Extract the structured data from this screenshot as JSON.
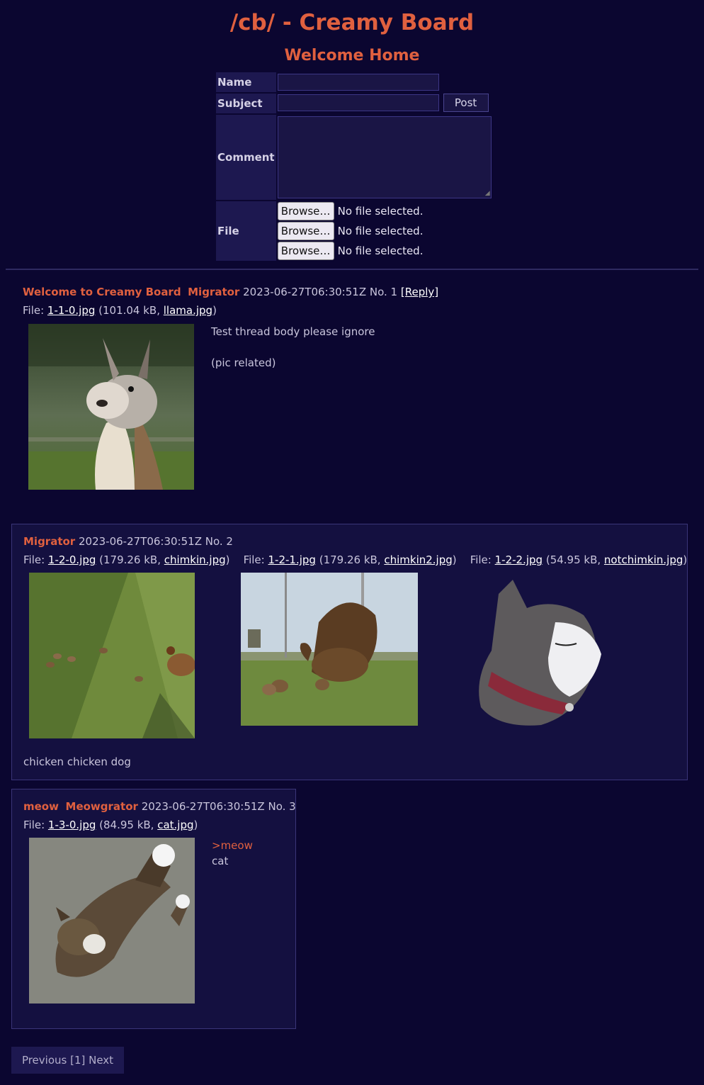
{
  "header": {
    "title": "/cb/ - Creamy Board",
    "subtitle": "Welcome Home"
  },
  "form": {
    "name_label": "Name",
    "subject_label": "Subject",
    "comment_label": "Comment",
    "file_label": "File",
    "post_button": "Post",
    "browse_button": "Browse…",
    "no_file_text": "No file selected."
  },
  "posts": [
    {
      "subject": "Welcome to Creamy Board",
      "name": "Migrator",
      "date": "2023-06-27T06:30:51Z",
      "number": "No. 1",
      "reply_link": "[Reply]",
      "files": [
        {
          "link": "1-1-0.jpg",
          "size": "101.04 kB",
          "original": "llama.jpg"
        }
      ],
      "body_lines": [
        "Test thread body please ignore",
        "(pic related)"
      ]
    },
    {
      "name": "Migrator",
      "date": "2023-06-27T06:30:51Z",
      "number": "No. 2",
      "files": [
        {
          "link": "1-2-0.jpg",
          "size": "179.26 kB",
          "original": "chimkin.jpg"
        },
        {
          "link": "1-2-1.jpg",
          "size": "179.26 kB",
          "original": "chimkin2.jpg"
        },
        {
          "link": "1-2-2.jpg",
          "size": "54.95 kB",
          "original": "notchimkin.jpg"
        }
      ],
      "body_lines": [
        "chicken chicken dog"
      ]
    },
    {
      "subject": "meow",
      "name": "Meowgrator",
      "date": "2023-06-27T06:30:51Z",
      "number": "No. 3",
      "files": [
        {
          "link": "1-3-0.jpg",
          "size": "84.95 kB",
          "original": "cat.jpg"
        }
      ],
      "body_lines": [
        ">meow",
        "cat"
      ]
    }
  ],
  "pager": {
    "text": "Previous [1] Next"
  },
  "colors": {
    "background": "#0b0630",
    "accent": "#e0603f",
    "panel": "#141040"
  }
}
